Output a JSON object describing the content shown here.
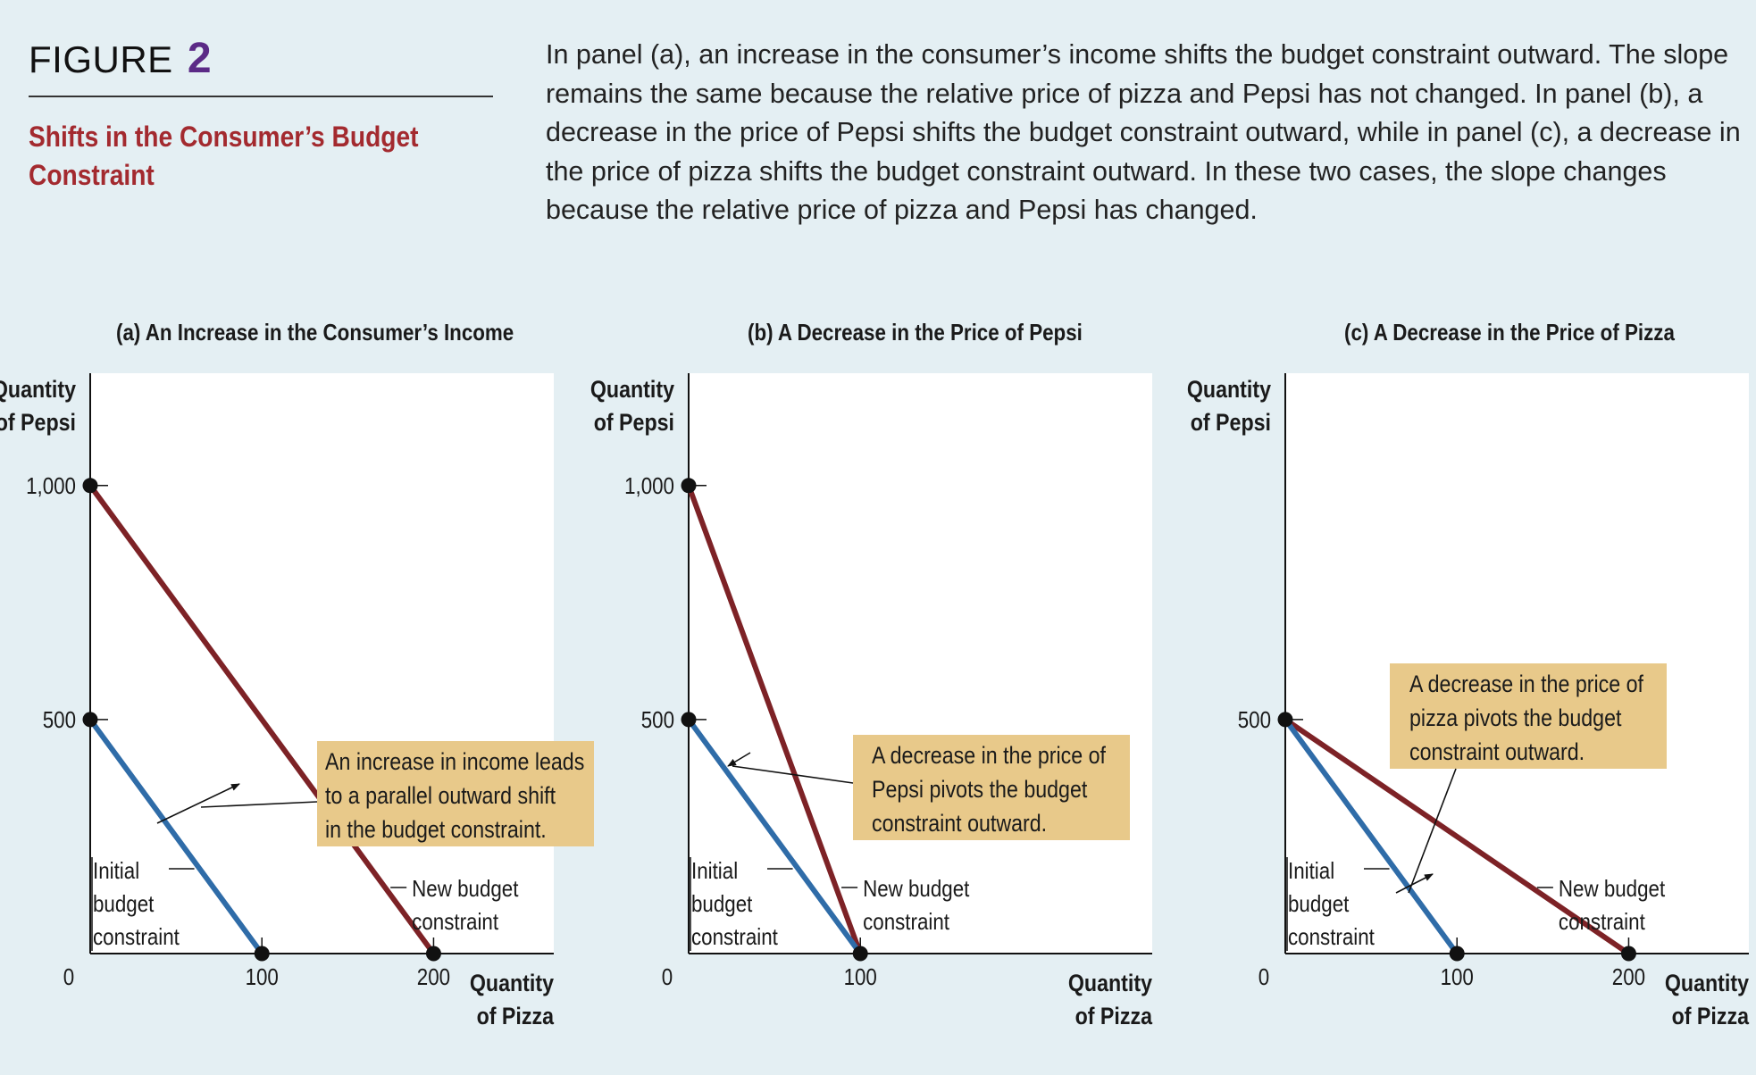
{
  "figure": {
    "label": "FIGURE",
    "number": "2",
    "subtitle_line1": "Shifts in the Consumer’s Budget",
    "subtitle_line2": "Constraint",
    "caption": "In panel (a), an increase in the consumer’s income shifts the budget constraint outward. The slope remains the same because the relative price of pizza and Pepsi has not changed. In panel (b), a decrease in the price of Pepsi shifts the budget constraint outward, while in panel (c), a decrease in the price of pizza shifts the budget constraint outward. In these two cases, the slope changes because the relative price of pizza and Pepsi has changed."
  },
  "colors": {
    "initial": "#2f6ca8",
    "new": "#7d2226",
    "annotation_bg": "#e8c98a",
    "subtitle": "#a32a2f",
    "figure_number": "#5b2a86"
  },
  "chart_data": [
    {
      "type": "line",
      "title": "(a) An Increase in the Consumer’s Income",
      "xlabel": [
        "Quantity",
        "of Pizza"
      ],
      "ylabel": [
        "Quantity",
        "of Pepsi"
      ],
      "xlim": [
        0,
        270
      ],
      "ylim": [
        0,
        1240
      ],
      "x_ticks": [
        {
          "value": 0,
          "label": "0"
        },
        {
          "value": 100,
          "label": "100"
        },
        {
          "value": 200,
          "label": "200"
        }
      ],
      "y_ticks": [
        {
          "value": 500,
          "label": "500"
        },
        {
          "value": 1000,
          "label": "1,000"
        }
      ],
      "series": [
        {
          "key": "initial",
          "points": [
            [
              0,
              500
            ],
            [
              100,
              0
            ]
          ]
        },
        {
          "key": "new",
          "points": [
            [
              0,
              1000
            ],
            [
              200,
              0
            ]
          ]
        }
      ],
      "line_labels": [
        {
          "key": "initial",
          "lines": [
            "Initial",
            "budget",
            "constraint"
          ]
        },
        {
          "key": "new",
          "lines": [
            "New budget",
            "constraint"
          ]
        }
      ],
      "annotation": [
        "An increase in income leads",
        "to a parallel outward shift",
        "in the budget constraint."
      ]
    },
    {
      "type": "line",
      "title": "(b) A Decrease in the Price of Pepsi",
      "xlabel": [
        "Quantity",
        "of Pizza"
      ],
      "ylabel": [
        "Quantity",
        "of Pepsi"
      ],
      "xlim": [
        0,
        270
      ],
      "ylim": [
        0,
        1240
      ],
      "x_ticks": [
        {
          "value": 0,
          "label": "0"
        },
        {
          "value": 100,
          "label": "100"
        }
      ],
      "y_ticks": [
        {
          "value": 500,
          "label": "500"
        },
        {
          "value": 1000,
          "label": "1,000"
        }
      ],
      "series": [
        {
          "key": "initial",
          "points": [
            [
              0,
              500
            ],
            [
              100,
              0
            ]
          ]
        },
        {
          "key": "new",
          "points": [
            [
              0,
              1000
            ],
            [
              100,
              0
            ]
          ]
        }
      ],
      "line_labels": [
        {
          "key": "initial",
          "lines": [
            "Initial",
            "budget",
            "constraint"
          ]
        },
        {
          "key": "new",
          "lines": [
            "New budget",
            "constraint"
          ]
        }
      ],
      "annotation": [
        "A decrease in the price of",
        "Pepsi pivots the budget",
        "constraint outward."
      ]
    },
    {
      "type": "line",
      "title": "(c) A Decrease in the Price of Pizza",
      "xlabel": [
        "Quantity",
        "of Pizza"
      ],
      "ylabel": [
        "Quantity",
        "of Pepsi"
      ],
      "xlim": [
        0,
        270
      ],
      "ylim": [
        0,
        1240
      ],
      "x_ticks": [
        {
          "value": 0,
          "label": "0"
        },
        {
          "value": 100,
          "label": "100"
        },
        {
          "value": 200,
          "label": "200"
        }
      ],
      "y_ticks": [
        {
          "value": 500,
          "label": "500"
        }
      ],
      "series": [
        {
          "key": "initial",
          "points": [
            [
              0,
              500
            ],
            [
              100,
              0
            ]
          ]
        },
        {
          "key": "new",
          "points": [
            [
              0,
              500
            ],
            [
              200,
              0
            ]
          ]
        }
      ],
      "line_labels": [
        {
          "key": "initial",
          "lines": [
            "Initial",
            "budget",
            "constraint"
          ]
        },
        {
          "key": "new",
          "lines": [
            "New budget",
            "constraint"
          ]
        }
      ],
      "annotation": [
        "A decrease in the price of",
        "pizza pivots the budget",
        "constraint outward."
      ]
    }
  ]
}
